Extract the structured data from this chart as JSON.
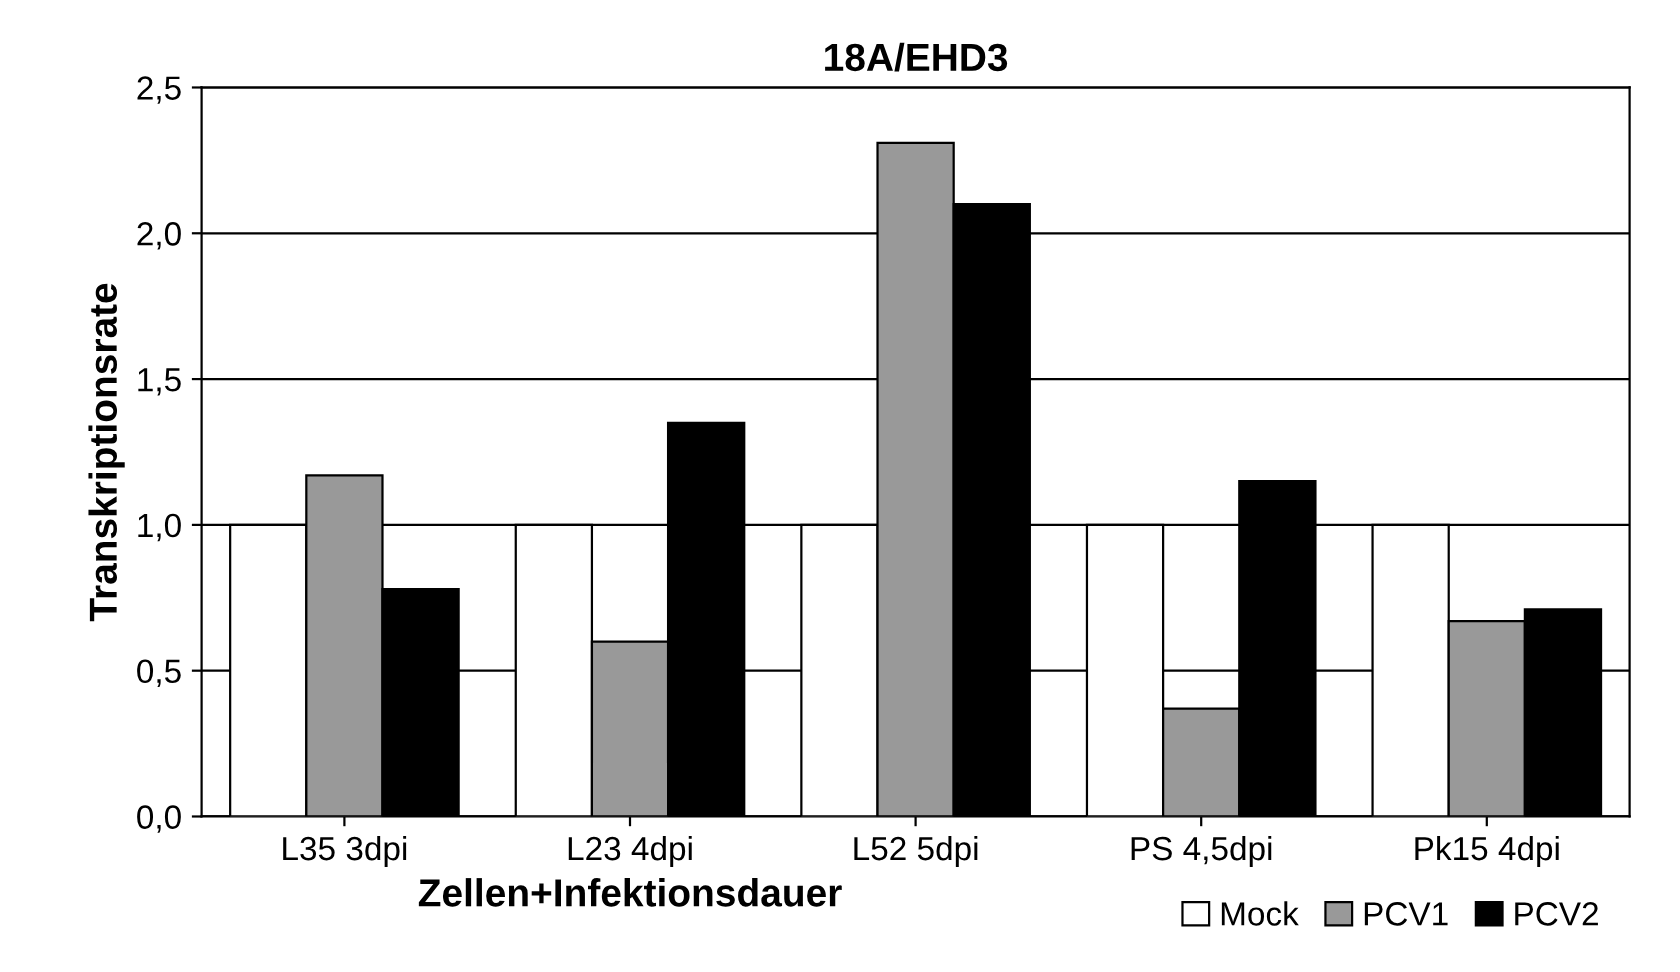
{
  "chart_data": {
    "type": "bar",
    "title": "18A/EHD3",
    "xlabel": "Zellen+Infektionsdauer",
    "ylabel": "Transkriptionsrate",
    "categories": [
      "L35 3dpi",
      "L23 4dpi",
      "L52 5dpi",
      "PS 4,5dpi",
      "Pk15 4dpi"
    ],
    "series": [
      {
        "name": "Mock",
        "color": "#ffffff",
        "values": [
          1.0,
          1.0,
          1.0,
          1.0,
          1.0
        ]
      },
      {
        "name": "PCV1",
        "color": "#999999",
        "values": [
          1.17,
          0.6,
          2.31,
          0.37,
          0.67
        ]
      },
      {
        "name": "PCV2",
        "color": "#000000",
        "values": [
          0.78,
          1.35,
          2.1,
          1.15,
          0.71
        ]
      }
    ],
    "ylim": [
      0,
      2.5
    ],
    "yticks": [
      {
        "value": 0,
        "label": "0,0"
      },
      {
        "value": 0.5,
        "label": "0,5"
      },
      {
        "value": 1.0,
        "label": "1,0"
      },
      {
        "value": 1.5,
        "label": "1,5"
      },
      {
        "value": 2.0,
        "label": "2,0"
      },
      {
        "value": 2.5,
        "label": "2,5"
      }
    ],
    "grid": "y",
    "legend": "bottom right"
  }
}
